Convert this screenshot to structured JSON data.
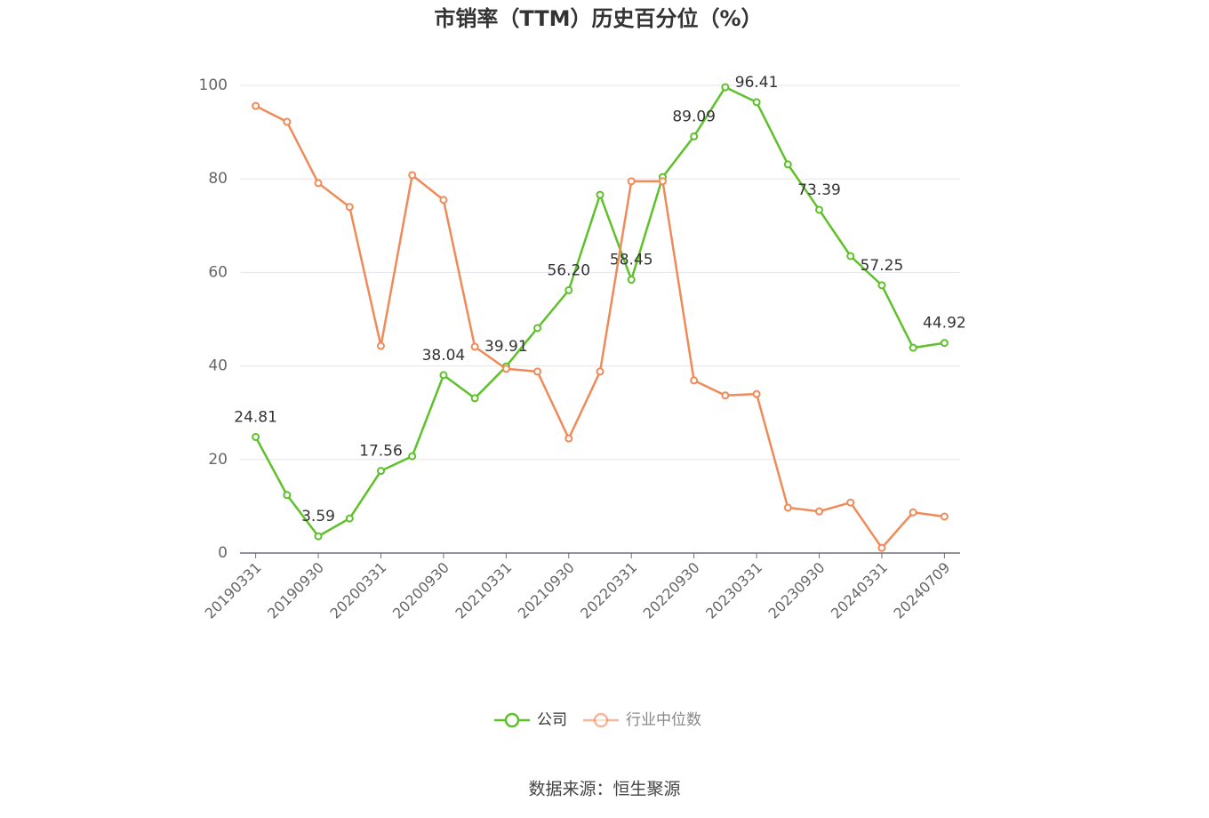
{
  "chart_data": {
    "type": "line",
    "title": "市销率（TTM）历史百分位（%）",
    "source": "数据来源：恒生聚源",
    "categories": [
      "20190331",
      null,
      "20190930",
      null,
      "20200331",
      null,
      "20200930",
      null,
      "20210331",
      null,
      "20210930",
      null,
      "20220331",
      null,
      "20220930",
      null,
      "20230331",
      null,
      "20230930",
      null,
      "20240331",
      null,
      "20240709"
    ],
    "ylim": [
      0,
      100
    ],
    "yticks": [
      0,
      20,
      40,
      60,
      80,
      100
    ],
    "grid": true,
    "legend": "bottom",
    "series": [
      {
        "name": "公司",
        "color": "#5ec12a",
        "values": [
          24.81,
          12.4,
          3.59,
          7.4,
          17.56,
          20.7,
          38.04,
          33.1,
          39.91,
          48.1,
          56.2,
          76.6,
          58.45,
          80.4,
          89.09,
          99.6,
          96.41,
          83.1,
          73.39,
          63.5,
          57.25,
          43.9,
          44.92
        ],
        "value_labels": [
          "24.81",
          null,
          "3.59",
          null,
          "17.56",
          null,
          "38.04",
          null,
          "39.91",
          null,
          "56.20",
          null,
          "58.45",
          null,
          "89.09",
          null,
          "96.41",
          null,
          "73.39",
          null,
          "57.25",
          null,
          "44.92"
        ]
      },
      {
        "name": "行业中位数",
        "color": "#f08a58",
        "values": [
          95.6,
          92.2,
          79.1,
          74.0,
          44.3,
          80.8,
          75.5,
          44.1,
          39.4,
          38.8,
          24.5,
          38.8,
          79.5,
          79.5,
          36.9,
          33.7,
          34.0,
          9.7,
          8.9,
          10.8,
          1.1,
          8.7,
          7.8
        ]
      }
    ]
  }
}
